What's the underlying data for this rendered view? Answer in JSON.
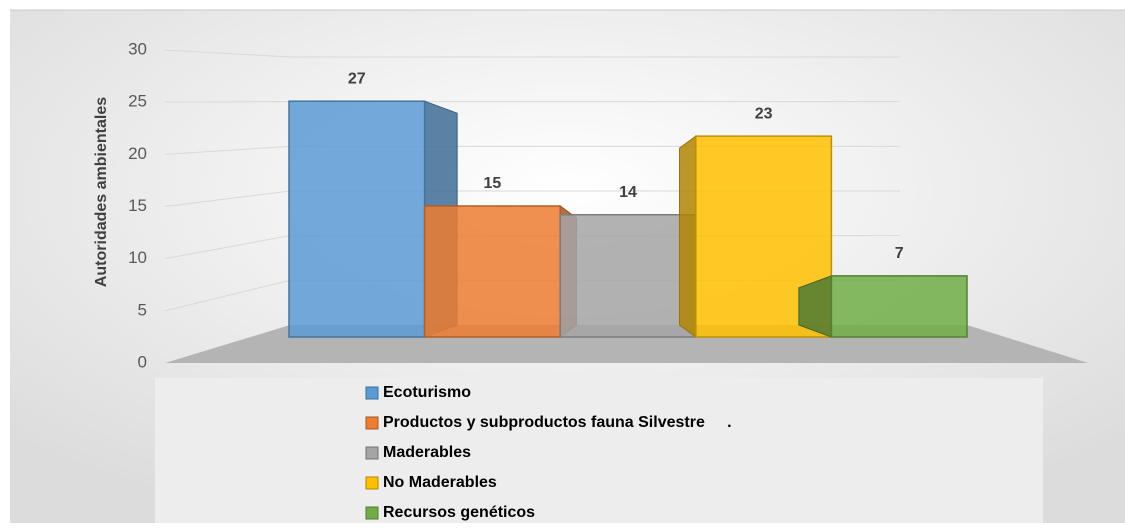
{
  "chart_data": {
    "type": "bar",
    "y_label": "Autoridades ambientales",
    "ylim": [
      0,
      30
    ],
    "yticks": [
      0,
      5,
      10,
      15,
      20,
      25,
      30
    ],
    "grid": true,
    "series": [
      {
        "name": "Ecoturismo",
        "color": "#5b9bd5",
        "values": [
          27
        ]
      },
      {
        "name": "Productos y subproductos fauna Silvestre     .",
        "color": "#ed7d31",
        "values": [
          15
        ]
      },
      {
        "name": "Maderables",
        "color": "#a5a5a5",
        "values": [
          14
        ]
      },
      {
        "name": "No Maderables",
        "color": "#ffc000",
        "values": [
          23
        ]
      },
      {
        "name": "Recursos genéticos",
        "color": "#70ad47",
        "values": [
          7
        ]
      }
    ]
  }
}
